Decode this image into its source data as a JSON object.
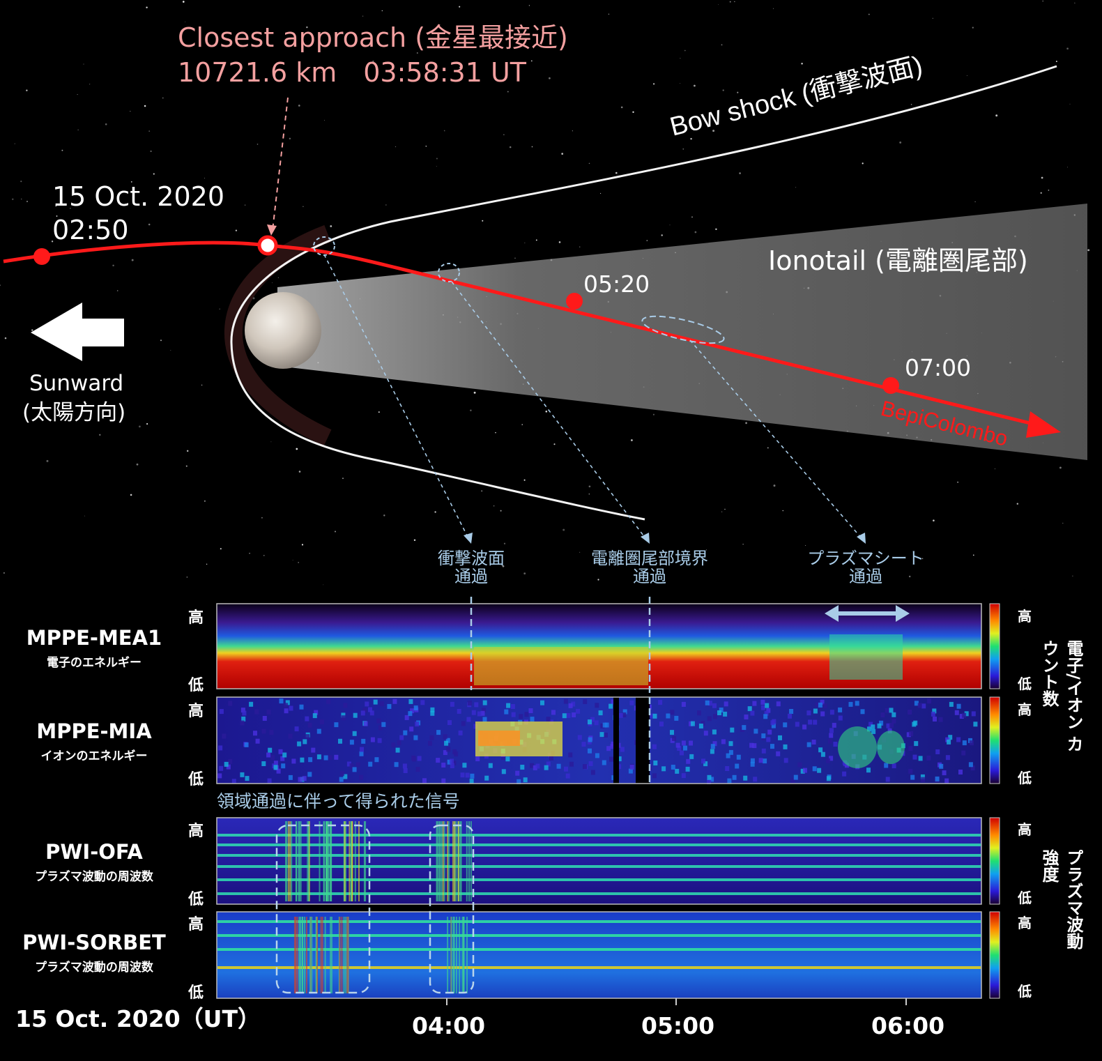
{
  "top": {
    "closest_title": "Closest approach (金星最接近)",
    "closest_detail": "10721.6 km　03:58:31 UT",
    "bow_shock": "Bow shock (衝撃波面)",
    "ionotail": "Ionotail (電離圏尾部)",
    "date": "15 Oct. 2020",
    "t_start": "02:50",
    "t_0520": "05:20",
    "t_0700": "07:00",
    "spacecraft": "BepiColombo",
    "sunward": "Sunward",
    "sunward_jp": "(太陽方向)",
    "trajectory_color": "#ff1a1a"
  },
  "events": [
    {
      "l1": "衝撃波面",
      "l2": "通過"
    },
    {
      "l1": "電離圏尾部境界",
      "l2": "通過"
    },
    {
      "l1": "プラズマシート",
      "l2": "通過"
    }
  ],
  "panels": [
    {
      "name": "MPPE-MEA1",
      "sub": "電子のエネルギー"
    },
    {
      "name": "MPPE-MIA",
      "sub": "イオンのエネルギー"
    },
    {
      "name": "PWI-OFA",
      "sub": "プラズマ波動の周波数"
    },
    {
      "name": "PWI-SORBET",
      "sub": "プラズマ波動の周波数"
    }
  ],
  "axis": {
    "high": "高",
    "low": "低"
  },
  "colorbar": {
    "particles": "電子/イオン カウント数",
    "waves": "プラズマ波動 強度"
  },
  "signal_note": "領域通過に伴って得られた信号",
  "time_axis": {
    "date_label": "15 Oct. 2020（UT）",
    "ticks": [
      "04:00",
      "05:00",
      "06:00"
    ]
  }
}
